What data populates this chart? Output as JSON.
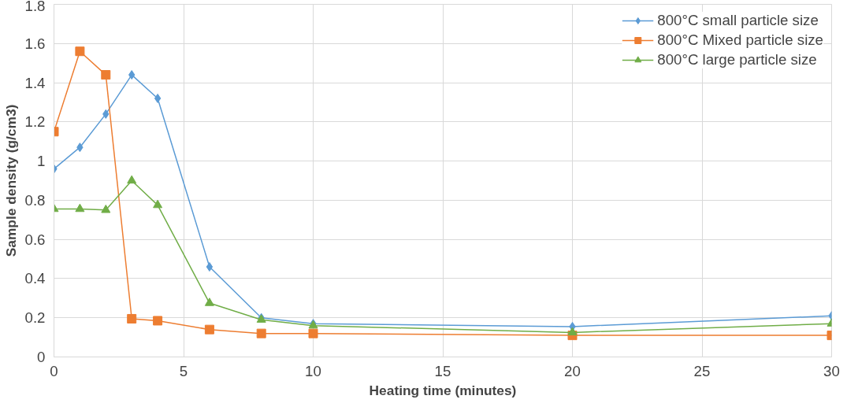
{
  "chart_data": {
    "type": "line",
    "xlabel": "Heating time (minutes)",
    "ylabel": "Sample density (g/cm3)",
    "x": [
      0,
      1,
      2,
      3,
      4,
      6,
      8,
      10,
      20,
      30
    ],
    "series": [
      {
        "name": "800°C small particle size",
        "color": "#5b9bd5",
        "marker": "diamond",
        "values": [
          0.96,
          1.07,
          1.24,
          1.44,
          1.32,
          0.46,
          0.2,
          0.17,
          0.155,
          0.21
        ]
      },
      {
        "name": "800°C Mixed particle size",
        "color": "#ed7d31",
        "marker": "square",
        "values": [
          1.15,
          1.56,
          1.44,
          0.195,
          0.185,
          0.14,
          0.12,
          0.12,
          0.11,
          0.11
        ]
      },
      {
        "name": "800°C large particle size",
        "color": "#70ad47",
        "marker": "triangle",
        "values": [
          0.755,
          0.755,
          0.75,
          0.9,
          0.775,
          0.275,
          0.19,
          0.16,
          0.125,
          0.17
        ]
      }
    ],
    "xlim": [
      0,
      30
    ],
    "xticks": [
      0,
      5,
      10,
      15,
      20,
      25,
      30
    ],
    "ylim": [
      0,
      1.8
    ],
    "yticks": [
      0,
      0.2,
      0.4,
      0.6,
      0.8,
      1,
      1.2,
      1.4,
      1.6,
      1.8
    ],
    "grid": true,
    "legend": "top right",
    "line_style": "solid"
  }
}
